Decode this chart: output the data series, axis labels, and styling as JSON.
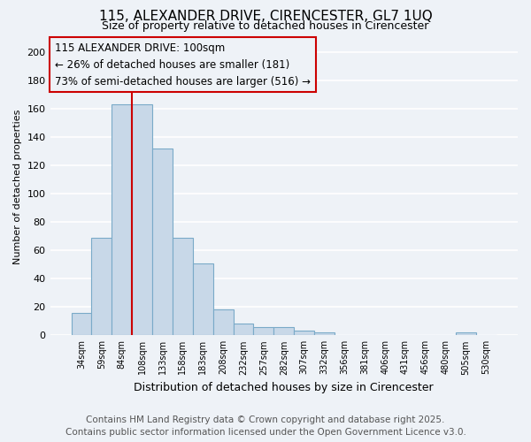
{
  "title_line1": "115, ALEXANDER DRIVE, CIRENCESTER, GL7 1UQ",
  "title_line2": "Size of property relative to detached houses in Cirencester",
  "xlabel": "Distribution of detached houses by size in Cirencester",
  "ylabel": "Number of detached properties",
  "categories": [
    "34sqm",
    "59sqm",
    "84sqm",
    "108sqm",
    "133sqm",
    "158sqm",
    "183sqm",
    "208sqm",
    "232sqm",
    "257sqm",
    "282sqm",
    "307sqm",
    "332sqm",
    "356sqm",
    "381sqm",
    "406sqm",
    "431sqm",
    "456sqm",
    "480sqm",
    "505sqm",
    "530sqm"
  ],
  "values": [
    16,
    69,
    163,
    163,
    132,
    69,
    51,
    18,
    8,
    6,
    6,
    3,
    2,
    0,
    0,
    0,
    0,
    0,
    0,
    2,
    0
  ],
  "bar_color": "#c8d8e8",
  "bar_edge_color": "#7aaac8",
  "bar_edge_width": 0.8,
  "vline_x_index": 3,
  "vline_color": "#cc0000",
  "annotation_text_line1": "115 ALEXANDER DRIVE: 100sqm",
  "annotation_text_line2": "← 26% of detached houses are smaller (181)",
  "annotation_text_line3": "73% of semi-detached houses are larger (516) →",
  "box_edge_color": "#cc0000",
  "ylim": [
    0,
    210
  ],
  "yticks": [
    0,
    20,
    40,
    60,
    80,
    100,
    120,
    140,
    160,
    180,
    200
  ],
  "bg_color": "#eef2f7",
  "grid_color": "#ffffff",
  "footer_line1": "Contains HM Land Registry data © Crown copyright and database right 2025.",
  "footer_line2": "Contains public sector information licensed under the Open Government Licence v3.0.",
  "footer_fontsize": 7.5,
  "title_fontsize1": 11,
  "title_fontsize2": 9,
  "annotation_fontsize": 8.5,
  "ylabel_fontsize": 8,
  "xlabel_fontsize": 9,
  "ytick_fontsize": 8,
  "xtick_fontsize": 7
}
